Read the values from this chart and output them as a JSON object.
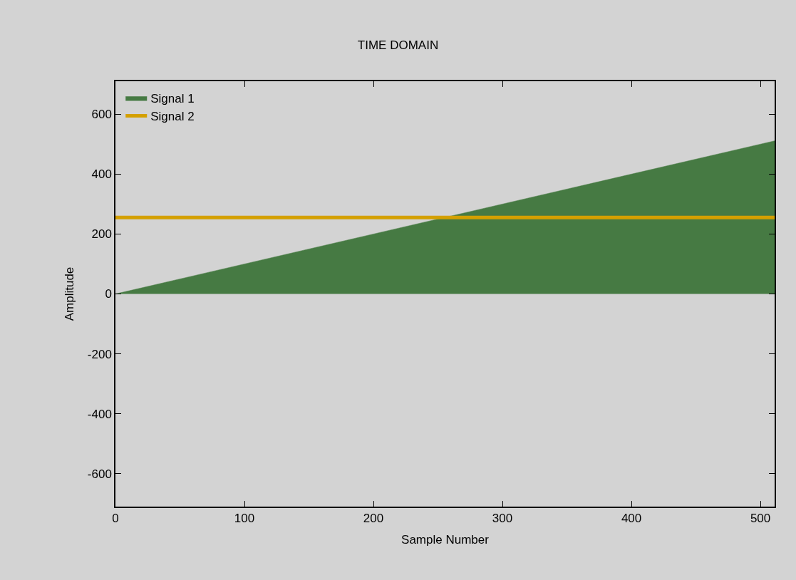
{
  "chart_data": {
    "type": "area",
    "title": "TIME DOMAIN",
    "xlabel": "Sample Number",
    "ylabel": "Amplitude",
    "x": [
      0,
      511
    ],
    "series": [
      {
        "name": "Signal 1",
        "color": "#467a43",
        "values": [
          0,
          511
        ]
      },
      {
        "name": "Signal 2",
        "color": "#d4a000",
        "type": "line",
        "values": [
          255,
          255
        ]
      }
    ],
    "xlim": [
      0,
      511
    ],
    "xticks": [
      0,
      100,
      200,
      300,
      400,
      500
    ],
    "ylim": [
      -710,
      710
    ],
    "yticks": [
      -600,
      -400,
      -200,
      0,
      200,
      400,
      600
    ],
    "grid": false,
    "legend": "top left"
  }
}
